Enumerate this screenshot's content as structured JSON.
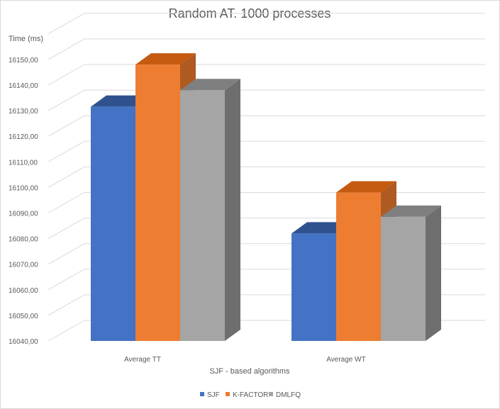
{
  "chart_data": {
    "type": "bar",
    "title": "Random AT. 1000 processes",
    "ylabel": "Time (ms)",
    "xlabel": "SJF - based algorithms",
    "categories": [
      "Average TT",
      "Average WT"
    ],
    "series": [
      {
        "name": "SJF",
        "values": [
          16131.5,
          16082.0
        ],
        "color": "#4472c4",
        "top": "#2f528f",
        "side": "#2f528f"
      },
      {
        "name": "K-FACTOR",
        "values": [
          16148.0,
          16098.0
        ],
        "color": "#ed7d31",
        "top": "#c55a11",
        "side": "#ae5a21"
      },
      {
        "name": "DMLFQ",
        "values": [
          16138.0,
          16088.5
        ],
        "color": "#a5a5a5",
        "top": "#7f7f7f",
        "side": "#6e6e6e"
      }
    ],
    "ylim": [
      16040,
      16160
    ],
    "yticks": [
      "16040,00",
      "16050,00",
      "16060,00",
      "16070,00",
      "16080,00",
      "16090,00",
      "16100,00",
      "16110,00",
      "16120,00",
      "16130,00",
      "16140,00",
      "16150,00"
    ],
    "grid": true,
    "legend_position": "bottom",
    "style": "3d-clustered-column"
  }
}
